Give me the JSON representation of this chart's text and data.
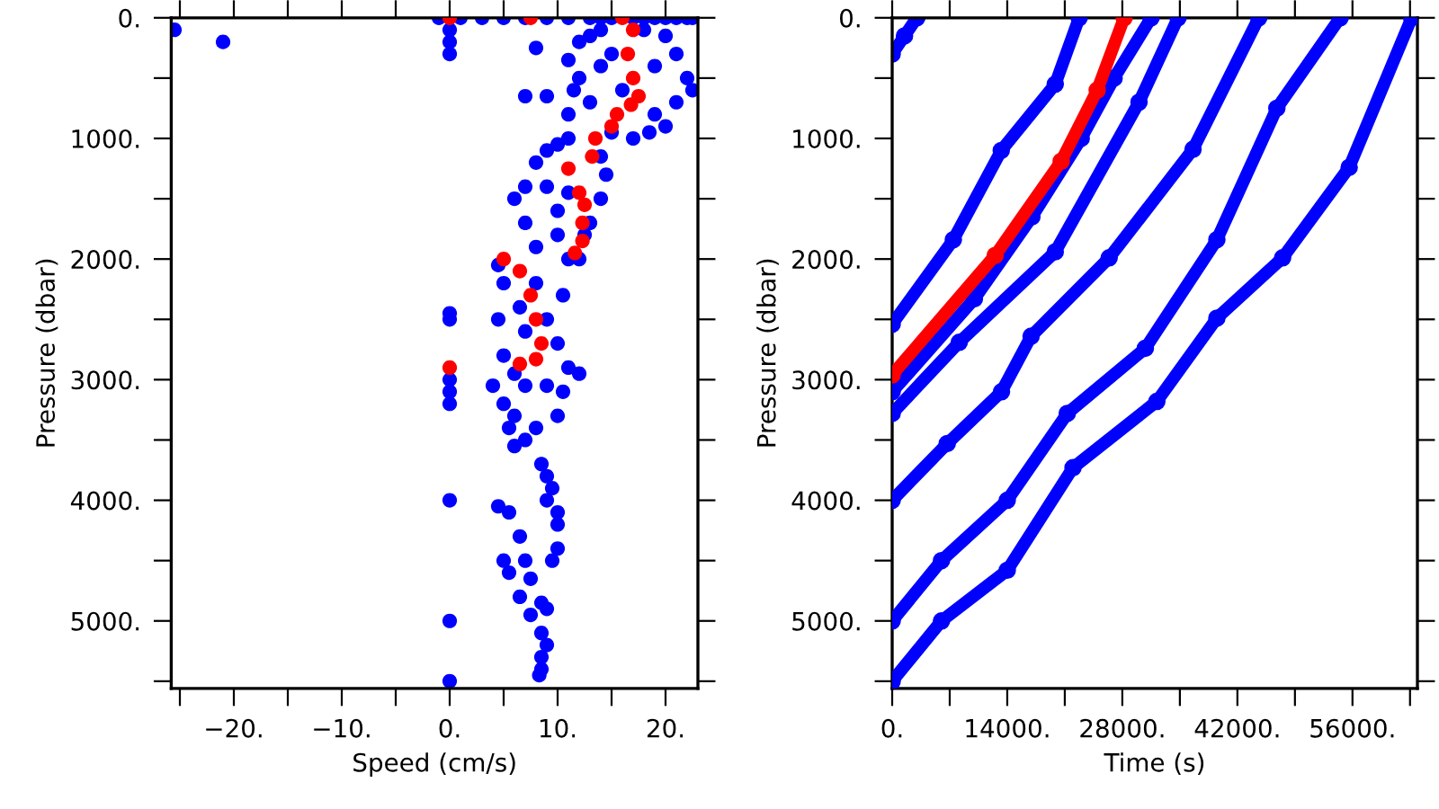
{
  "chart_data": [
    {
      "type": "scatter",
      "xlabel": "Speed (cm/s)",
      "ylabel": "Pressure (dbar)",
      "marker": "circle",
      "grid": false,
      "legend": false,
      "xlim": [
        -25.8,
        23
      ],
      "ylim": [
        5560,
        0
      ],
      "xticks": [
        {
          "value": -25,
          "label": null
        },
        {
          "value": -20,
          "label": "−20."
        },
        {
          "value": -15,
          "label": null
        },
        {
          "value": -10,
          "label": "−10."
        },
        {
          "value": -5,
          "label": null
        },
        {
          "value": 0,
          "label": "0."
        },
        {
          "value": 5,
          "label": null
        },
        {
          "value": 10,
          "label": "10."
        },
        {
          "value": 15,
          "label": null
        },
        {
          "value": 20,
          "label": "20."
        }
      ],
      "yticks": [
        {
          "value": 0,
          "label": "0."
        },
        {
          "value": 500,
          "label": null
        },
        {
          "value": 1000,
          "label": "1000."
        },
        {
          "value": 1500,
          "label": null
        },
        {
          "value": 2000,
          "label": "2000."
        },
        {
          "value": 2500,
          "label": null
        },
        {
          "value": 3000,
          "label": "3000."
        },
        {
          "value": 3500,
          "label": null
        },
        {
          "value": 4000,
          "label": "4000."
        },
        {
          "value": 4500,
          "label": null
        },
        {
          "value": 5000,
          "label": "5000."
        },
        {
          "value": 5500,
          "label": null
        }
      ],
      "series": [
        {
          "color": "#0000ff",
          "x": [
            -1,
            1,
            3,
            5,
            7,
            9,
            11,
            13,
            14,
            15,
            17,
            18,
            19,
            20,
            21,
            22,
            22.5,
            0,
            0,
            0,
            11,
            12,
            13,
            14,
            18,
            20,
            21,
            22,
            22.5,
            21,
            20,
            19,
            18.5,
            17,
            15,
            13,
            12,
            11.5,
            11,
            9,
            7,
            8,
            14,
            16,
            19,
            15,
            10,
            9,
            8,
            7,
            6,
            7,
            8,
            11,
            14,
            14.5,
            14,
            13,
            12.5,
            12,
            10,
            9,
            11,
            10,
            4.5,
            5,
            4.5,
            5,
            6,
            8,
            9,
            10,
            11,
            12,
            10.5,
            11,
            7,
            6.5,
            4,
            5,
            5.5,
            6,
            7,
            8.5,
            10,
            10.5,
            9,
            7,
            6,
            8,
            9,
            9.5,
            9,
            10,
            10,
            10,
            9.5,
            4.5,
            5.5,
            6.5,
            7,
            7.5,
            8.5,
            9,
            5,
            5.5,
            6.5,
            7.5,
            8.5,
            9,
            8.5,
            8.5,
            8.3,
            0,
            0,
            0,
            0,
            0,
            0,
            0,
            0,
            -25.5,
            -21
          ],
          "values": [
            0,
            0,
            0,
            0,
            0,
            0,
            0,
            0,
            0,
            0,
            0,
            0,
            0,
            0,
            0,
            0,
            0,
            100,
            200,
            300,
            350,
            200,
            150,
            100,
            100,
            150,
            300,
            500,
            600,
            700,
            900,
            800,
            950,
            1000,
            950,
            700,
            500,
            600,
            800,
            650,
            650,
            250,
            400,
            600,
            400,
            300,
            1050,
            1100,
            1200,
            1400,
            1500,
            1700,
            1900,
            1000,
            1150,
            1300,
            1500,
            1700,
            1800,
            2000,
            1600,
            1400,
            1450,
            1800,
            2050,
            2200,
            2500,
            2800,
            2950,
            2200,
            2500,
            2700,
            2900,
            2950,
            2300,
            2000,
            2600,
            2400,
            3050,
            3200,
            3400,
            3550,
            3500,
            3700,
            3300,
            3100,
            3050,
            3050,
            3300,
            3400,
            3800,
            3900,
            4000,
            4100,
            4200,
            4400,
            4500,
            4050,
            4100,
            4300,
            4500,
            4650,
            4850,
            4900,
            4500,
            4600,
            4800,
            4950,
            5100,
            5200,
            5300,
            5400,
            5450,
            2450,
            2500,
            3000,
            3100,
            3200,
            4000,
            5000,
            5500,
            100,
            200
          ]
        },
        {
          "color": "#ff0000",
          "x": [
            16,
            17,
            16.5,
            17,
            17.5,
            16.8,
            15.5,
            15,
            13.5,
            13.2,
            11,
            12,
            12.5,
            12.3,
            12.3,
            11.6,
            5,
            6.5,
            7.5,
            8,
            8.5,
            8,
            6.5,
            0,
            0,
            7.5
          ],
          "values": [
            0,
            100,
            300,
            500,
            650,
            720,
            800,
            900,
            1000,
            1150,
            1250,
            1450,
            1550,
            1700,
            1850,
            1950,
            2000,
            2100,
            2300,
            2500,
            2700,
            2830,
            2870,
            2900,
            0,
            0
          ]
        }
      ]
    },
    {
      "type": "line",
      "xlabel": "Time (s)",
      "ylabel": "Pressure (dbar)",
      "marker": "circle",
      "grid": false,
      "legend": false,
      "xlim": [
        0,
        63900
      ],
      "ylim": [
        5560,
        0
      ],
      "xticks": [
        {
          "value": 0,
          "label": "0."
        },
        {
          "value": 7000,
          "label": null
        },
        {
          "value": 14000,
          "label": "14000."
        },
        {
          "value": 21000,
          "label": null
        },
        {
          "value": 28000,
          "label": "28000."
        },
        {
          "value": 35000,
          "label": null
        },
        {
          "value": 42000,
          "label": "42000."
        },
        {
          "value": 49000,
          "label": null
        },
        {
          "value": 56000,
          "label": "56000."
        },
        {
          "value": 63000,
          "label": null
        }
      ],
      "yticks": [
        {
          "value": 0,
          "label": "0."
        },
        {
          "value": 500,
          "label": null
        },
        {
          "value": 1000,
          "label": "1000."
        },
        {
          "value": 1500,
          "label": null
        },
        {
          "value": 2000,
          "label": "2000."
        },
        {
          "value": 2500,
          "label": null
        },
        {
          "value": 3000,
          "label": "3000."
        },
        {
          "value": 3500,
          "label": null
        },
        {
          "value": 4000,
          "label": "4000."
        },
        {
          "value": 4500,
          "label": null
        },
        {
          "value": 5000,
          "label": "5000."
        },
        {
          "value": 5500,
          "label": null
        }
      ],
      "series": [
        {
          "color": "#0000ff",
          "x": [
            0,
            1500,
            3000
          ],
          "values": [
            300,
            150,
            0
          ]
        },
        {
          "color": "#0000ff",
          "x": [
            0,
            7440,
            13270,
            19840,
            22750
          ],
          "values": [
            2540,
            1840,
            1100,
            550,
            0
          ]
        },
        {
          "color": "#0000ff",
          "x": [
            0,
            8160,
            19840,
            30030,
            34780
          ],
          "values": [
            3280,
            2690,
            1940,
            700,
            0
          ]
        },
        {
          "color": "#0000ff",
          "x": [
            0,
            10000,
            17000,
            23000,
            27000,
            31500
          ],
          "values": [
            3100,
            2330,
            1650,
            1000,
            500,
            0
          ]
        },
        {
          "color": "#0000ff",
          "x": [
            0,
            6700,
            13300,
            16900,
            26400,
            36600,
            44600
          ],
          "values": [
            4000,
            3530,
            3100,
            2640,
            1990,
            1090,
            0
          ]
        },
        {
          "color": "#0000ff",
          "x": [
            0,
            6000,
            14000,
            21300,
            30800,
            39500,
            46800,
            54500
          ],
          "values": [
            5000,
            4500,
            4000,
            3280,
            2740,
            1840,
            750,
            0
          ]
        },
        {
          "color": "#0000ff",
          "x": [
            0,
            6000,
            14000,
            22000,
            32200,
            39500,
            47500,
            55600,
            63200
          ],
          "values": [
            5500,
            5000,
            4580,
            3730,
            3180,
            2490,
            1990,
            1240,
            0
          ]
        },
        {
          "color": "#ff0000",
          "x": [
            0,
            12530,
            20560,
            24940,
            28220
          ],
          "values": [
            2960,
            1970,
            1190,
            600,
            0
          ]
        }
      ]
    }
  ]
}
